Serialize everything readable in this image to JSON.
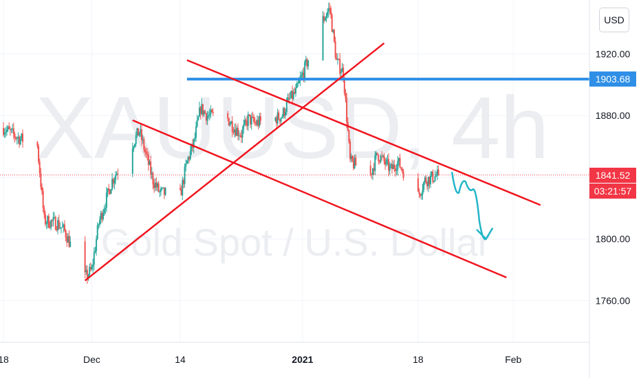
{
  "currency_label": "USD",
  "watermark": {
    "symbol": "XAUUSD, 4h",
    "description": "Gold Spot / U.S. Dollar"
  },
  "colors": {
    "up_candle": "#26a69a",
    "down_candle": "#ef5350",
    "trend_line": "#f0141e",
    "horizontal_level": "#2f8fe6",
    "projection_arrow": "#22b5c8",
    "last_price": "#f23645",
    "grid": "#f0f3fa"
  },
  "chart_data": {
    "type": "candlestick",
    "interval": "4h",
    "y_axis": {
      "range": [
        1733,
        1955
      ],
      "ticks": [
        1760,
        1800,
        1840,
        1880,
        1920
      ],
      "labels": [
        "1760.00",
        "1800.00",
        "1840.00",
        "1880.00",
        "1920.00"
      ],
      "position": "right"
    },
    "x_axis": {
      "range": [
        "2020-11-18",
        "2021-02-12"
      ],
      "ticks": [
        {
          "date": "2020-11-18",
          "label": "18",
          "bold": false
        },
        {
          "date": "2020-12-01",
          "label": "Dec",
          "bold": false
        },
        {
          "date": "2020-12-14",
          "label": "14",
          "bold": false
        },
        {
          "date": "2021-01-01",
          "label": "2021",
          "bold": true
        },
        {
          "date": "2021-01-18",
          "label": "18",
          "bold": false
        },
        {
          "date": "2021-02-01",
          "label": "Feb",
          "bold": false
        }
      ]
    },
    "price_path": [
      [
        "2020-11-18",
        1872
      ],
      [
        "2020-11-20",
        1866
      ],
      [
        "2020-11-23",
        1860
      ],
      [
        "2020-11-24",
        1812
      ],
      [
        "2020-11-26",
        1810
      ],
      [
        "2020-11-27",
        1805
      ],
      [
        "2020-11-30",
        1775
      ],
      [
        "2020-12-01",
        1780
      ],
      [
        "2020-12-02",
        1810
      ],
      [
        "2020-12-04",
        1838
      ],
      [
        "2020-12-07",
        1862
      ],
      [
        "2020-12-08",
        1870
      ],
      [
        "2020-12-10",
        1838
      ],
      [
        "2020-12-11",
        1830
      ],
      [
        "2020-12-14",
        1828
      ],
      [
        "2020-12-15",
        1850
      ],
      [
        "2020-12-16",
        1862
      ],
      [
        "2020-12-17",
        1885
      ],
      [
        "2020-12-18",
        1880
      ],
      [
        "2020-12-21",
        1878
      ],
      [
        "2020-12-22",
        1872
      ],
      [
        "2020-12-23",
        1868
      ],
      [
        "2020-12-24",
        1878
      ],
      [
        "2020-12-25",
        1875
      ],
      [
        "2020-12-28",
        1878
      ],
      [
        "2020-12-29",
        1880
      ],
      [
        "2020-12-30",
        1890
      ],
      [
        "2020-12-31",
        1895
      ],
      [
        "2021-01-04",
        1942
      ],
      [
        "2021-01-05",
        1950
      ],
      [
        "2021-01-06",
        1915
      ],
      [
        "2021-01-07",
        1908
      ],
      [
        "2021-01-08",
        1850
      ],
      [
        "2021-01-11",
        1842
      ],
      [
        "2021-01-12",
        1855
      ],
      [
        "2021-01-13",
        1850
      ],
      [
        "2021-01-14",
        1845
      ],
      [
        "2021-01-15",
        1850
      ],
      [
        "2021-01-18",
        1828
      ],
      [
        "2021-01-19",
        1838
      ],
      [
        "2021-01-21",
        1841.52
      ]
    ],
    "annotations": {
      "horizontal_level": {
        "price": 1903.68,
        "label": "1903.68",
        "from": "2020-12-15"
      },
      "trend_lines": [
        {
          "name": "ascending support",
          "start": [
            "2020-11-30",
            1773
          ],
          "end": [
            "2021-01-13",
            1927
          ]
        },
        {
          "name": "descending channel upper",
          "start": [
            "2020-12-15",
            1916
          ],
          "end": [
            "2021-02-05",
            1822
          ]
        },
        {
          "name": "descending channel lower",
          "start": [
            "2020-12-07",
            1877
          ],
          "end": [
            "2021-01-31",
            1775
          ]
        }
      ],
      "projection_arrow": {
        "points": [
          [
            "2021-01-23",
            1843
          ],
          [
            "2021-01-24",
            1830
          ],
          [
            "2021-01-25",
            1837
          ],
          [
            "2021-01-26",
            1832
          ],
          [
            "2021-01-27",
            1812
          ],
          [
            "2021-01-28",
            1800
          ]
        ]
      }
    },
    "last_price": {
      "value": 1841.52,
      "label": "1841.52",
      "countdown": "03:21:57"
    }
  }
}
